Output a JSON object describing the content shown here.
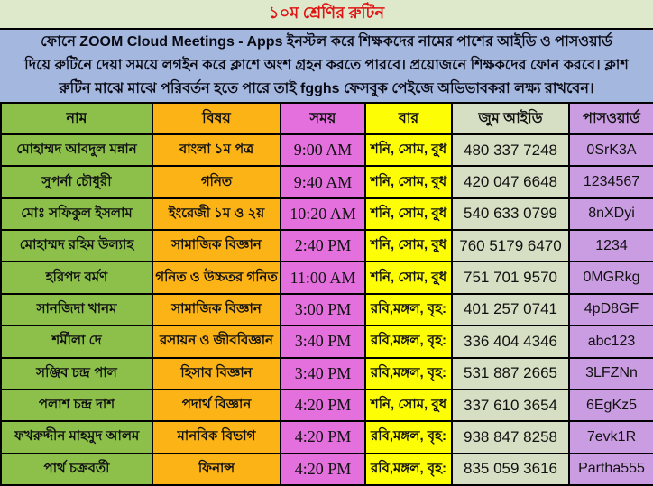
{
  "title": "১০ম শ্রেণির রুটিন",
  "notice": {
    "lines": [
      "ফোনে ZOOM Cloud Meetings - Apps ইনস্টল করে শিক্ষকদের নামের পাশের আইডি ও পাসওয়ার্ড",
      "দিয়ে রুটিনে দেয়া সময়ে লগইন করে ক্লাশে অংশ গ্রহন করতে পারবে। প্রয়োজনে শিক্ষকদের ফোন করবে। ক্লাশ",
      "রুটিন মাঝে মাঝে পরিবর্তন হতে পারে তাই fgghs ফেসবুক পেইজে অভিভাবকরা লক্ষ্য রাখবেন।"
    ]
  },
  "table": {
    "headers": [
      "নাম",
      "বিষয়",
      "সময়",
      "বার",
      "জুম আইডি",
      "পাসওয়ার্ড"
    ],
    "column_names": [
      "name",
      "subject",
      "time",
      "day",
      "zoom-id",
      "password"
    ],
    "rows": [
      [
        "মোহাম্মদ আবদুল মন্নান",
        "বাংলা ১ম পত্র",
        "9:00 AM",
        "শনি, সোম, বুধ",
        "480 337 7248",
        "0SrK3A"
      ],
      [
        "সুপর্না চৌধুরী",
        "গনিত",
        "9:40 AM",
        "শনি, সোম, বুধ",
        "420 047 6648",
        "1234567"
      ],
      [
        "মোঃ সফিকুল ইসলাম",
        "ইংরেজী ১ম ও ২য়",
        "10:20 AM",
        "শনি, সোম, বুধ",
        "540 633 0799",
        "8nXDyi"
      ],
      [
        "মোহাম্মদ রহিম উল্যাহ",
        "সামাজিক বিজ্ঞান",
        "2:40 PM",
        "শনি, সোম, বুধ",
        "760 5179 6470",
        "1234"
      ],
      [
        "হরিপদ বর্মণ",
        "গনিত ও উচ্চতর গনিত",
        "11:00 AM",
        "শনি, সোম, বুধ",
        "751 701 9570",
        "0MGRkg"
      ],
      [
        "সানজিদা খানম",
        "সামাজিক বিজ্ঞান",
        "3:00 PM",
        "রবি,মঙ্গল, বৃহ:",
        "401 257 0741",
        "4pD8GF"
      ],
      [
        "শর্মীলা দে",
        "রসায়ন ও জীববিজ্ঞান",
        "3:40 PM",
        "রবি,মঙ্গল, বৃহ:",
        "336 404 4346",
        "abc123"
      ],
      [
        "সঞ্জিব চন্দ্র পাল",
        "হিসাব বিজ্ঞান",
        "3:40 PM",
        "রবি,মঙ্গল, বৃহ:",
        "531 887 2665",
        "3LFZNn"
      ],
      [
        "পলাশ চন্দ্র দাশ",
        "পদার্থ বিজ্ঞান",
        "4:20 PM",
        "শনি, সোম, বুধ",
        "337 610 3654",
        "6EgKz5"
      ],
      [
        "ফখরুদ্দীন মাহমুদ আলম",
        "মানবিক বিভাগ",
        "4:20 PM",
        "রবি,মঙ্গল, বৃহ:",
        "938 847 8258",
        "7evk1R"
      ],
      [
        "পার্থ চক্রবর্তী",
        "ফিনান্স",
        "4:20 PM",
        "রবি,মঙ্গল, বৃহ:",
        "835 059 3616",
        "Partha555"
      ]
    ]
  },
  "colors": {
    "title_bg": "#dde9ca",
    "title_text": "#e01414",
    "notice_bg": "#a4b7df",
    "col_name": "#8dc04b",
    "col_subject": "#fcb316",
    "col_time": "#e470de",
    "col_day": "#fdfd05",
    "col_zoom_id": "#d6dfc4",
    "col_password": "#ca9de2",
    "border": "#000000"
  }
}
